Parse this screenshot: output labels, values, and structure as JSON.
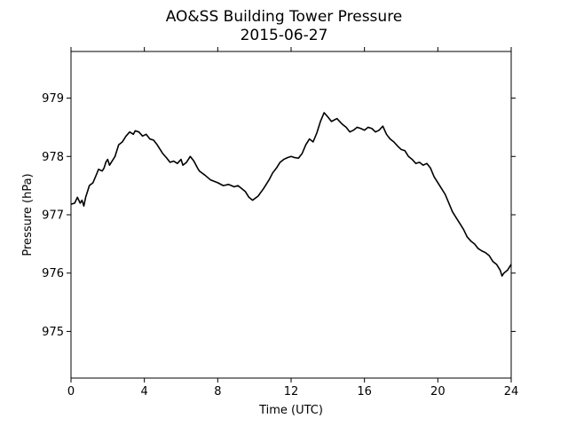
{
  "chart_data": {
    "type": "line",
    "title": "AO&SS Building Tower Pressure",
    "subtitle": "2015-06-27",
    "xlabel": "Time (UTC)",
    "ylabel": "Pressure (hPa)",
    "xlim": [
      0,
      24
    ],
    "ylim": [
      974.2,
      979.8
    ],
    "xticks": [
      0,
      4,
      8,
      12,
      16,
      20,
      24
    ],
    "yticks": [
      975,
      976,
      977,
      978,
      979
    ],
    "grid": false,
    "series": [
      {
        "color": "#000000",
        "x": [
          0,
          0.2,
          0.35,
          0.5,
          0.6,
          0.7,
          0.8,
          0.9,
          1.0,
          1.2,
          1.4,
          1.5,
          1.7,
          1.8,
          1.9,
          2.0,
          2.1,
          2.2,
          2.4,
          2.6,
          2.8,
          3.0,
          3.2,
          3.4,
          3.5,
          3.7,
          3.9,
          4.1,
          4.3,
          4.5,
          4.7,
          4.9,
          5.0,
          5.2,
          5.4,
          5.6,
          5.8,
          6.0,
          6.1,
          6.3,
          6.5,
          6.7,
          6.9,
          7.0,
          7.3,
          7.6,
          8.0,
          8.3,
          8.6,
          8.9,
          9.1,
          9.3,
          9.5,
          9.7,
          9.9,
          10.2,
          10.5,
          10.8,
          11.0,
          11.2,
          11.4,
          11.6,
          11.8,
          12.0,
          12.2,
          12.4,
          12.6,
          12.8,
          13.0,
          13.2,
          13.4,
          13.6,
          13.8,
          14.0,
          14.2,
          14.5,
          14.8,
          15.0,
          15.2,
          15.4,
          15.6,
          15.8,
          16.0,
          16.2,
          16.4,
          16.6,
          16.8,
          17.0,
          17.2,
          17.4,
          17.6,
          17.8,
          18.0,
          18.2,
          18.4,
          18.6,
          18.8,
          19.0,
          19.2,
          19.4,
          19.6,
          19.8,
          20.0,
          20.2,
          20.4,
          20.6,
          20.8,
          21.0,
          21.2,
          21.4,
          21.6,
          21.8,
          22.0,
          22.2,
          22.4,
          22.6,
          22.8,
          23.0,
          23.2,
          23.4,
          23.5,
          23.6,
          23.8,
          24.0
        ],
        "y": [
          977.18,
          977.2,
          977.3,
          977.2,
          977.25,
          977.15,
          977.3,
          977.4,
          977.5,
          977.55,
          977.7,
          977.78,
          977.75,
          977.8,
          977.9,
          977.95,
          977.85,
          977.9,
          978.0,
          978.2,
          978.25,
          978.35,
          978.42,
          978.38,
          978.44,
          978.42,
          978.35,
          978.38,
          978.3,
          978.28,
          978.2,
          978.1,
          978.05,
          977.98,
          977.9,
          977.92,
          977.88,
          977.95,
          977.85,
          977.9,
          978.0,
          977.92,
          977.8,
          977.75,
          977.68,
          977.6,
          977.55,
          977.5,
          977.52,
          977.48,
          977.5,
          977.45,
          977.4,
          977.3,
          977.25,
          977.32,
          977.45,
          977.6,
          977.72,
          977.8,
          977.9,
          977.95,
          977.98,
          978.0,
          977.98,
          977.97,
          978.05,
          978.2,
          978.3,
          978.25,
          978.4,
          978.6,
          978.75,
          978.68,
          978.6,
          978.65,
          978.55,
          978.5,
          978.42,
          978.45,
          978.5,
          978.48,
          978.45,
          978.5,
          978.48,
          978.42,
          978.45,
          978.52,
          978.38,
          978.3,
          978.25,
          978.18,
          978.12,
          978.1,
          978.0,
          977.95,
          977.88,
          977.9,
          977.85,
          977.88,
          977.8,
          977.65,
          977.55,
          977.45,
          977.35,
          977.2,
          977.05,
          976.95,
          976.85,
          976.75,
          976.62,
          976.55,
          976.5,
          976.42,
          976.38,
          976.35,
          976.3,
          976.2,
          976.15,
          976.05,
          975.95,
          976.0,
          976.05,
          976.15
        ]
      }
    ]
  }
}
